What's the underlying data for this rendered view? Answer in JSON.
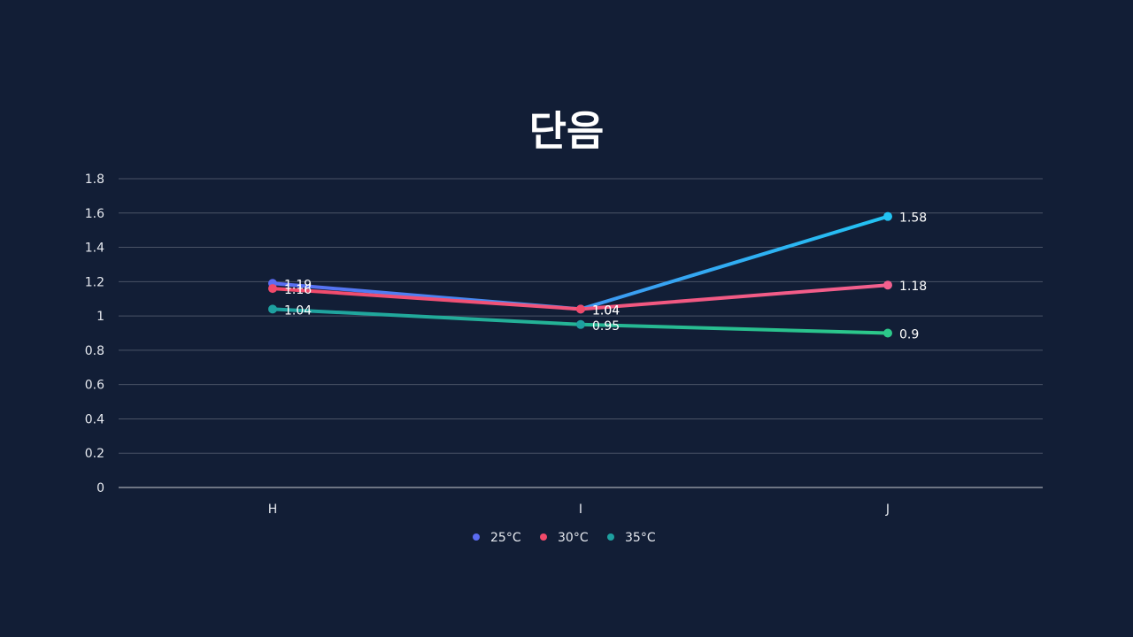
{
  "chart_data": {
    "type": "line",
    "title": "단음",
    "categories": [
      "H",
      "I",
      "J"
    ],
    "ylim": [
      0,
      1.8
    ],
    "yticks": [
      "0",
      "0.2",
      "0.4",
      "0.6",
      "0.8",
      "1",
      "1.2",
      "1.4",
      "1.6",
      "1.8"
    ],
    "grid": true,
    "legend_position": "bottom",
    "series": [
      {
        "name": "25°C",
        "values": [
          1.19,
          1.04,
          1.58
        ],
        "labels": [
          "1.19",
          "1.04",
          "1.58"
        ],
        "color_start": "#5b6cf2",
        "color_end": "#22c3f3"
      },
      {
        "name": "30°C",
        "values": [
          1.16,
          1.04,
          1.18
        ],
        "labels": [
          "1.16",
          "1.04",
          "1.18"
        ],
        "color_start": "#f04a6a",
        "color_end": "#f2608e"
      },
      {
        "name": "35°C",
        "values": [
          1.04,
          0.95,
          0.9
        ],
        "labels": [
          "1.04",
          "0.95",
          "0.9"
        ],
        "color_start": "#1ea0a0",
        "color_end": "#2cc98a"
      }
    ]
  },
  "colors": {
    "background": "#121e36",
    "gridline": "#4a5366",
    "axis": "#c9ccd3"
  }
}
